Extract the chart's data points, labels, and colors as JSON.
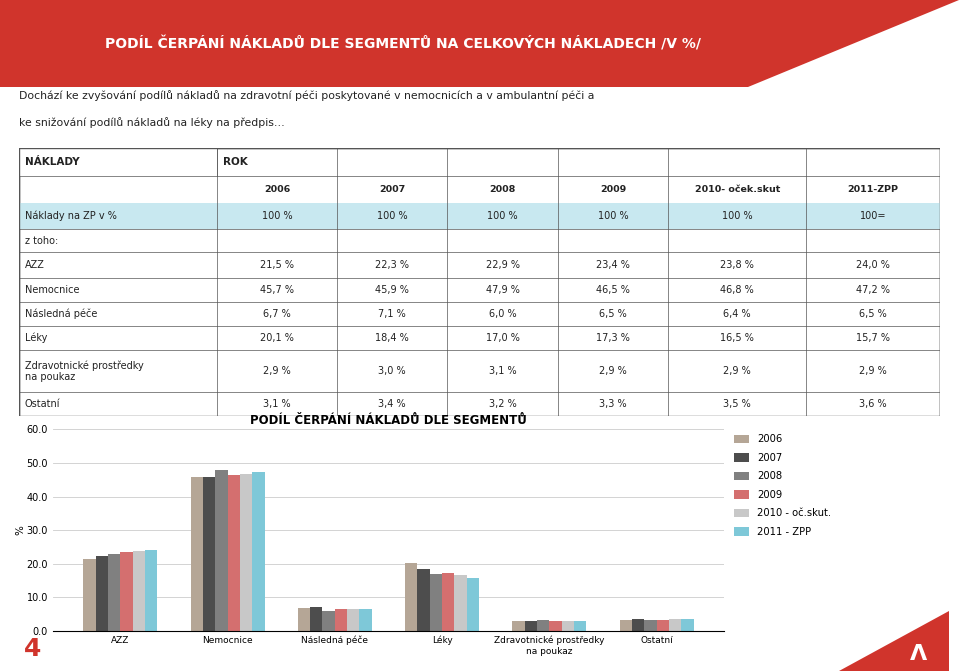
{
  "title_banner": "PODÍL ČERPÁNÍ NÁKLADŮ DLE SEGMENTŮ NA CELKOVÝCH NÁKLADECH /V %/",
  "subtitle_line1": "Dochází ke zvyšování podílů nákladů na zdravotní péči poskytované v nemocnicích a v ambulantní péči a",
  "subtitle_line2": "ke snižování podílů nákladů na léky na předpis…",
  "year_headers": [
    "2006",
    "2007",
    "2008",
    "2009",
    "2010- oček.skut",
    "2011-ZPP"
  ],
  "table_rows": [
    [
      "Náklady na ZP v %",
      "100 %",
      "100 %",
      "100 %",
      "100 %",
      "100 %",
      "100="
    ],
    [
      "z toho:",
      "",
      "",
      "",
      "",
      "",
      ""
    ],
    [
      "AZZ",
      "21,5 %",
      "22,3 %",
      "22,9 %",
      "23,4 %",
      "23,8 %",
      "24,0 %"
    ],
    [
      "Nemocnice",
      "45,7 %",
      "45,9 %",
      "47,9 %",
      "46,5 %",
      "46,8 %",
      "47,2 %"
    ],
    [
      "Následná péče",
      "6,7 %",
      "7,1 %",
      "6,0 %",
      "6,5 %",
      "6,4 %",
      "6,5 %"
    ],
    [
      "Léky",
      "20,1 %",
      "18,4 %",
      "17,0 %",
      "17,3 %",
      "16,5 %",
      "15,7 %"
    ],
    [
      "Zdravotnické prostředky\nna poukaz",
      "2,9 %",
      "3,0 %",
      "3,1 %",
      "2,9 %",
      "2,9 %",
      "2,9 %"
    ],
    [
      "Ostatní",
      "3,1 %",
      "3,4 %",
      "3,2 %",
      "3,3 %",
      "3,5 %",
      "3,6 %"
    ]
  ],
  "chart_title": "PODÍL ČERPÁNÍ NÁKLADŮ DLE SEGMENTŮ",
  "chart_ylabel": "%",
  "chart_ylim": [
    0,
    60
  ],
  "chart_yticks": [
    0.0,
    10.0,
    20.0,
    30.0,
    40.0,
    50.0,
    60.0
  ],
  "chart_categories": [
    "AZZ",
    "Nemocnice",
    "Následná péče",
    "Léky",
    "Zdravotnické prostředky\nna poukaz",
    "Ostatní"
  ],
  "series": [
    {
      "label": "2006",
      "color": "#b5a696",
      "values": [
        21.5,
        45.7,
        6.7,
        20.1,
        2.9,
        3.1
      ]
    },
    {
      "label": "2007",
      "color": "#4d4d4d",
      "values": [
        22.3,
        45.9,
        7.1,
        18.4,
        3.0,
        3.4
      ]
    },
    {
      "label": "2008",
      "color": "#808080",
      "values": [
        22.9,
        47.9,
        6.0,
        17.0,
        3.1,
        3.2
      ]
    },
    {
      "label": "2009",
      "color": "#d46f6f",
      "values": [
        23.4,
        46.5,
        6.5,
        17.3,
        2.9,
        3.3
      ]
    },
    {
      "label": "2010 - oč.skut.",
      "color": "#c8c8c8",
      "values": [
        23.8,
        46.8,
        6.4,
        16.5,
        2.9,
        3.5
      ]
    },
    {
      "label": "2011 - ZPP",
      "color": "#7ec8d8",
      "values": [
        24.0,
        47.2,
        6.5,
        15.7,
        2.9,
        3.6
      ]
    }
  ],
  "banner_color": "#d0342c",
  "highlight_color": "#c8e8f0",
  "table_border": "#555555",
  "page_bg": "#ffffff",
  "footer_number": "4",
  "footer_color": "#d0342c",
  "text_color": "#222222"
}
